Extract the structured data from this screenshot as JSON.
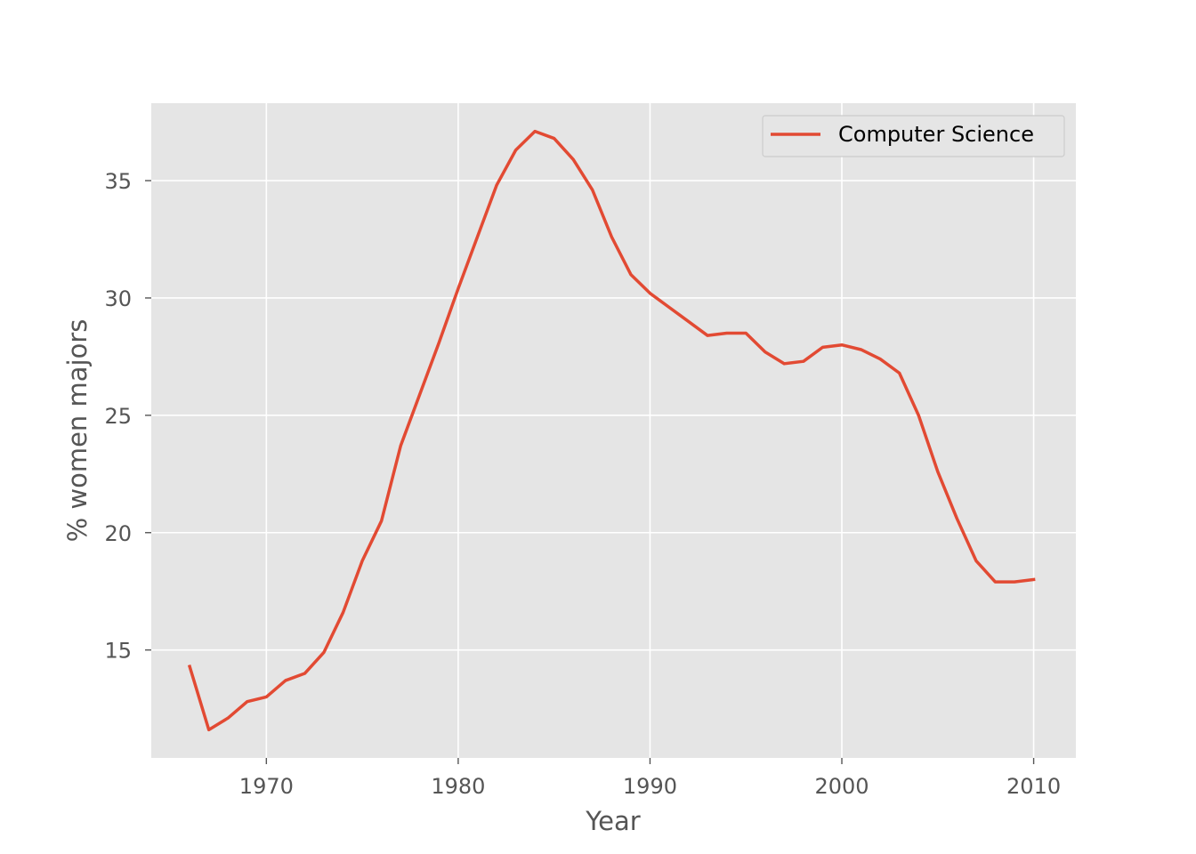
{
  "chart_data": {
    "type": "line",
    "xlabel": "Year",
    "ylabel": "% women majors",
    "xlim": [
      1964,
      2012.2
    ],
    "ylim": [
      10.4,
      38.3
    ],
    "xticks": [
      1970,
      1980,
      1990,
      2000,
      2010
    ],
    "yticks": [
      15,
      20,
      25,
      30,
      35
    ],
    "grid": true,
    "legend_position": "top-right",
    "style": "ggplot",
    "colors": {
      "plot_background": "#E5E5E5",
      "grid": "#FFFFFF",
      "line": "#E24A33",
      "legend_background": "#E5E5E5",
      "legend_border": "#CCCCCC",
      "tick": "#555555"
    },
    "series": [
      {
        "name": "Computer Science",
        "x": [
          1966,
          1967,
          1968,
          1969,
          1970,
          1971,
          1972,
          1973,
          1974,
          1975,
          1976,
          1977,
          1978,
          1979,
          1980,
          1981,
          1982,
          1983,
          1984,
          1985,
          1986,
          1987,
          1988,
          1989,
          1990,
          1991,
          1992,
          1993,
          1994,
          1995,
          1996,
          1997,
          1998,
          1999,
          2000,
          2001,
          2002,
          2003,
          2004,
          2005,
          2006,
          2007,
          2008,
          2009,
          2010
        ],
        "y": [
          14.3,
          11.6,
          12.1,
          12.8,
          13.0,
          13.7,
          14.0,
          14.9,
          16.6,
          18.8,
          20.5,
          23.7,
          25.9,
          28.1,
          30.4,
          32.6,
          34.8,
          36.3,
          37.1,
          36.8,
          35.9,
          34.6,
          32.6,
          31.0,
          30.2,
          29.6,
          29.0,
          28.4,
          28.5,
          28.5,
          27.7,
          27.2,
          27.3,
          27.9,
          28.0,
          27.8,
          27.4,
          26.8,
          25.0,
          22.6,
          20.6,
          18.8,
          17.9,
          17.9,
          18.0
        ]
      }
    ]
  }
}
